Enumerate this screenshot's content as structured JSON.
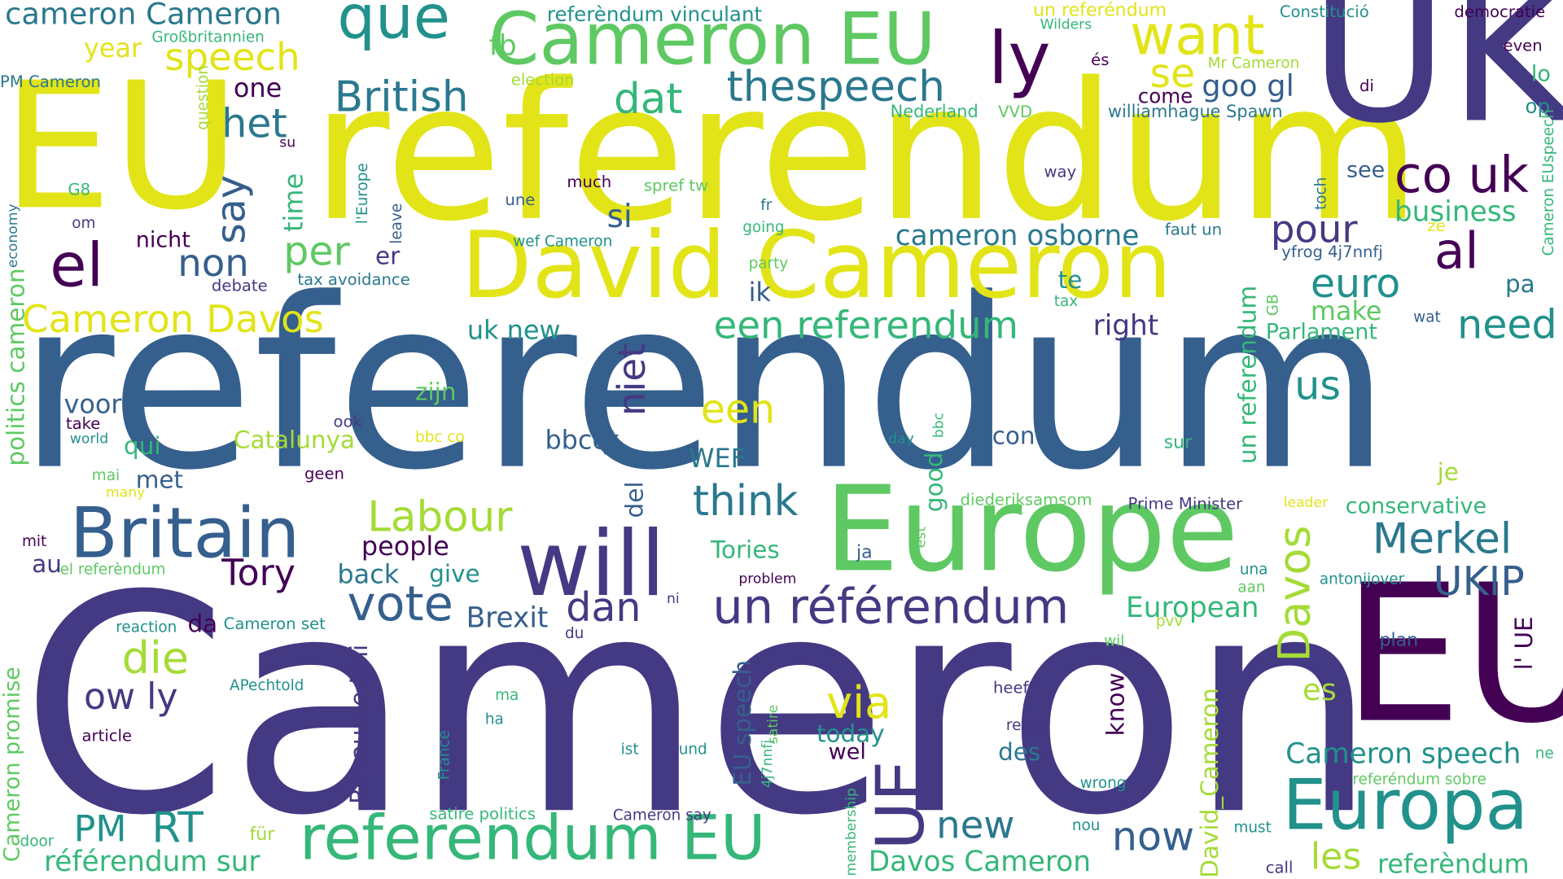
{
  "colors": {
    "yellow": "#e2e418",
    "lime": "#a5db36",
    "green": "#5ec962",
    "teal_green": "#35b779",
    "teal": "#21918c",
    "blue_teal": "#2a788e",
    "blue": "#355f8d",
    "indigo": "#443983",
    "purple": "#440154"
  },
  "words": [
    {
      "text": "referendum",
      "color": "blue"
    },
    {
      "text": "Cameron",
      "color": "indigo"
    },
    {
      "text": "EU",
      "color": "yellow"
    },
    {
      "text": "referendum",
      "color": "yellow"
    },
    {
      "text": "UK",
      "color": "indigo"
    },
    {
      "text": "EU",
      "color": "purple"
    },
    {
      "text": "David Cameron",
      "color": "yellow"
    },
    {
      "text": "Europe",
      "color": "green"
    },
    {
      "text": "Cameron EU",
      "color": "green"
    },
    {
      "text": "Britain",
      "color": "blue"
    },
    {
      "text": "will",
      "color": "indigo"
    },
    {
      "text": "Europa",
      "color": "teal"
    },
    {
      "text": "referendum EU",
      "color": "teal_green"
    },
    {
      "text": "un référendum",
      "color": "indigo"
    },
    {
      "text": "que",
      "color": "teal"
    },
    {
      "text": "ly",
      "color": "purple"
    },
    {
      "text": "want",
      "color": "yellow"
    },
    {
      "text": "el",
      "color": "purple"
    },
    {
      "text": "al",
      "color": "purple"
    },
    {
      "text": "co uk",
      "color": "purple"
    },
    {
      "text": "UE",
      "color": "indigo"
    },
    {
      "text": "vote",
      "color": "blue"
    },
    {
      "text": "British",
      "color": "blue_teal"
    },
    {
      "text": "thespeech",
      "color": "blue_teal"
    },
    {
      "text": "cameron Cameron",
      "color": "blue_teal"
    },
    {
      "text": "speech",
      "color": "yellow"
    },
    {
      "text": "dat",
      "color": "teal_green"
    },
    {
      "text": "het",
      "color": "blue_teal"
    },
    {
      "text": "se",
      "color": "yellow"
    },
    {
      "text": "Cameron Davos",
      "color": "yellow"
    },
    {
      "text": "een referendum",
      "color": "teal_green"
    },
    {
      "text": "euro",
      "color": "teal"
    },
    {
      "text": "need",
      "color": "teal"
    },
    {
      "text": "think",
      "color": "blue_teal"
    },
    {
      "text": "Merkel",
      "color": "blue_teal"
    },
    {
      "text": "UKIP",
      "color": "blue"
    },
    {
      "text": "Labour",
      "color": "lime"
    },
    {
      "text": "Tory",
      "color": "purple"
    },
    {
      "text": "die",
      "color": "lime"
    },
    {
      "text": "via",
      "color": "yellow"
    },
    {
      "text": "now",
      "color": "blue"
    },
    {
      "text": "new",
      "color": "blue_teal"
    },
    {
      "text": "RT",
      "color": "teal"
    },
    {
      "text": "PM",
      "color": "teal"
    },
    {
      "text": "ow ly",
      "color": "indigo"
    },
    {
      "text": "dan",
      "color": "indigo"
    },
    {
      "text": "een",
      "color": "yellow"
    },
    {
      "text": "us",
      "color": "teal"
    },
    {
      "text": "pour",
      "color": "indigo"
    },
    {
      "text": "non",
      "color": "blue"
    },
    {
      "text": "per",
      "color": "green"
    },
    {
      "text": "say",
      "color": "blue"
    },
    {
      "text": "niet",
      "color": "indigo"
    },
    {
      "text": "Davos",
      "color": "lime"
    },
    {
      "text": "les",
      "color": "lime"
    },
    {
      "text": "Cameron speech",
      "color": "teal"
    },
    {
      "text": "es",
      "color": "lime"
    },
    {
      "text": "European",
      "color": "teal_green"
    },
    {
      "text": "Brexit",
      "color": "blue"
    },
    {
      "text": "die",
      "color": "lime"
    },
    {
      "text": "Davos Cameron",
      "color": "teal_green"
    },
    {
      "text": "référendum sur",
      "color": "teal_green"
    },
    {
      "text": "referèndum",
      "color": "teal_green"
    },
    {
      "text": "si",
      "color": "blue"
    },
    {
      "text": "cameron osborne",
      "color": "blue_teal"
    },
    {
      "text": "goo gl",
      "color": "blue"
    },
    {
      "text": "fb",
      "color": "green"
    },
    {
      "text": "year",
      "color": "yellow"
    },
    {
      "text": "one",
      "color": "purple"
    },
    {
      "text": "time",
      "color": "teal_green"
    },
    {
      "text": "right",
      "color": "indigo"
    },
    {
      "text": "business",
      "color": "teal_green"
    },
    {
      "text": "make",
      "color": "green"
    },
    {
      "text": "pa",
      "color": "blue_teal"
    },
    {
      "text": "ik",
      "color": "blue"
    },
    {
      "text": "te",
      "color": "teal"
    },
    {
      "text": "Parlament",
      "color": "teal_green"
    },
    {
      "text": "uk new",
      "color": "teal"
    },
    {
      "text": "er",
      "color": "indigo"
    },
    {
      "text": "nicht",
      "color": "purple"
    },
    {
      "text": "voor",
      "color": "blue"
    },
    {
      "text": "qui",
      "color": "teal_green"
    },
    {
      "text": "met",
      "color": "blue"
    },
    {
      "text": "Catalunya",
      "color": "lime"
    },
    {
      "text": "zijn",
      "color": "green"
    },
    {
      "text": "bbcqt",
      "color": "blue"
    },
    {
      "text": "WEF",
      "color": "blue_teal"
    },
    {
      "text": "con",
      "color": "blue"
    },
    {
      "text": "good",
      "color": "teal_green"
    },
    {
      "text": "conservative",
      "color": "teal_green"
    },
    {
      "text": "je",
      "color": "lime"
    },
    {
      "text": "people",
      "color": "purple"
    },
    {
      "text": "back",
      "color": "blue_teal"
    },
    {
      "text": "give",
      "color": "teal"
    },
    {
      "text": "Tories",
      "color": "teal_green"
    },
    {
      "text": "au",
      "color": "indigo"
    },
    {
      "text": "da",
      "color": "purple"
    },
    {
      "text": "del",
      "color": "blue"
    },
    {
      "text": "today",
      "color": "teal"
    },
    {
      "text": "des",
      "color": "blue_teal"
    },
    {
      "text": "wel",
      "color": "purple"
    },
    {
      "text": "EU speech",
      "color": "blue"
    },
    {
      "text": "Royaume Uni",
      "color": "indigo"
    },
    {
      "text": "un referendum",
      "color": "teal_green"
    },
    {
      "text": "David_Cameron",
      "color": "lime"
    },
    {
      "text": "know",
      "color": "purple"
    },
    {
      "text": "politics cameron",
      "color": "green"
    },
    {
      "text": "Cameron promise",
      "color": "green"
    },
    {
      "text": "l' UE",
      "color": "purple"
    },
    {
      "text": "referèndum vinculant",
      "color": "teal"
    },
    {
      "text": "un referéndum",
      "color": "yellow"
    },
    {
      "text": "Constitució",
      "color": "teal"
    },
    {
      "text": "democratie",
      "color": "purple"
    },
    {
      "text": "Wilders",
      "color": "teal_green"
    },
    {
      "text": "Großbritannien",
      "color": "teal_green"
    },
    {
      "text": "PM Cameron",
      "color": "blue_teal"
    },
    {
      "text": "election",
      "color": "lime"
    },
    {
      "text": "Mr Cameron",
      "color": "lime"
    },
    {
      "text": "even",
      "color": "purple"
    },
    {
      "text": "lo",
      "color": "teal_green"
    },
    {
      "text": "op",
      "color": "teal"
    },
    {
      "text": "és",
      "color": "purple"
    },
    {
      "text": "come",
      "color": "purple"
    },
    {
      "text": "di",
      "color": "purple"
    },
    {
      "text": "Nederland",
      "color": "teal_green"
    },
    {
      "text": "VVD",
      "color": "green"
    },
    {
      "text": "williamhague Spawn",
      "color": "blue_teal"
    },
    {
      "text": "Cameron EUspeech",
      "color": "teal_green"
    },
    {
      "text": "question",
      "color": "lime"
    },
    {
      "text": "su",
      "color": "purple"
    },
    {
      "text": "l'Europe",
      "color": "teal"
    },
    {
      "text": "leave",
      "color": "blue"
    },
    {
      "text": "much",
      "color": "purple"
    },
    {
      "text": "spref tw",
      "color": "green"
    },
    {
      "text": "way",
      "color": "indigo"
    },
    {
      "text": "see",
      "color": "blue"
    },
    {
      "text": "toch",
      "color": "blue_teal"
    },
    {
      "text": "G8",
      "color": "teal_green"
    },
    {
      "text": "om",
      "color": "indigo"
    },
    {
      "text": "une",
      "color": "blue"
    },
    {
      "text": "fr",
      "color": "blue_teal"
    },
    {
      "text": "going",
      "color": "teal_green"
    },
    {
      "text": "wef Cameron",
      "color": "teal"
    },
    {
      "text": "faut un",
      "color": "blue_teal"
    },
    {
      "text": "ze",
      "color": "yellow"
    },
    {
      "text": "economy",
      "color": "blue_teal"
    },
    {
      "text": "debate",
      "color": "indigo"
    },
    {
      "text": "tax avoidance",
      "color": "blue_teal"
    },
    {
      "text": "party",
      "color": "green"
    },
    {
      "text": "tax",
      "color": "teal_green"
    },
    {
      "text": "yfrog 4j7nnfj",
      "color": "blue"
    },
    {
      "text": "GB",
      "color": "green"
    },
    {
      "text": "wat",
      "color": "blue"
    },
    {
      "text": "ook",
      "color": "indigo"
    },
    {
      "text": "take",
      "color": "purple"
    },
    {
      "text": "world",
      "color": "teal"
    },
    {
      "text": "bbc co",
      "color": "yellow"
    },
    {
      "text": "day",
      "color": "teal"
    },
    {
      "text": "bbc",
      "color": "teal_green"
    },
    {
      "text": "sur",
      "color": "teal_green"
    },
    {
      "text": "mai",
      "color": "green"
    },
    {
      "text": "many",
      "color": "yellow"
    },
    {
      "text": "geen",
      "color": "purple"
    },
    {
      "text": "est",
      "color": "green"
    },
    {
      "text": "diederiksamsom",
      "color": "green"
    },
    {
      "text": "Prime Minister",
      "color": "indigo"
    },
    {
      "text": "leader",
      "color": "yellow"
    },
    {
      "text": "mit",
      "color": "purple"
    },
    {
      "text": "el referèndum",
      "color": "green"
    },
    {
      "text": "ja",
      "color": "blue"
    },
    {
      "text": "problem",
      "color": "purple"
    },
    {
      "text": "ni",
      "color": "indigo"
    },
    {
      "text": "una",
      "color": "teal"
    },
    {
      "text": "aan",
      "color": "green"
    },
    {
      "text": "antonijover",
      "color": "teal"
    },
    {
      "text": "reaction",
      "color": "teal"
    },
    {
      "text": "Cameron set",
      "color": "teal"
    },
    {
      "text": "du",
      "color": "indigo"
    },
    {
      "text": "pvv",
      "color": "lime"
    },
    {
      "text": "wil",
      "color": "green"
    },
    {
      "text": "plan",
      "color": "blue"
    },
    {
      "text": "ne",
      "color": "teal_green"
    },
    {
      "text": "APechtold",
      "color": "teal"
    },
    {
      "text": "ma",
      "color": "teal_green"
    },
    {
      "text": "heeft",
      "color": "indigo"
    },
    {
      "text": "satire",
      "color": "green"
    },
    {
      "text": "4j7nnfj",
      "color": "teal_green"
    },
    {
      "text": "article",
      "color": "purple"
    },
    {
      "text": "ha",
      "color": "teal"
    },
    {
      "text": "France",
      "color": "teal"
    },
    {
      "text": "really",
      "color": "indigo"
    },
    {
      "text": "ist",
      "color": "teal"
    },
    {
      "text": "und",
      "color": "teal"
    },
    {
      "text": "wrong",
      "color": "teal"
    },
    {
      "text": "referéndum sobre",
      "color": "green"
    },
    {
      "text": "membership",
      "color": "teal_green"
    },
    {
      "text": "satire politics",
      "color": "teal_green"
    },
    {
      "text": "Cameron say",
      "color": "indigo"
    },
    {
      "text": "für",
      "color": "lime"
    },
    {
      "text": "door",
      "color": "teal_green"
    },
    {
      "text": "nou",
      "color": "teal"
    },
    {
      "text": "must",
      "color": "teal"
    },
    {
      "text": "call",
      "color": "indigo"
    }
  ]
}
